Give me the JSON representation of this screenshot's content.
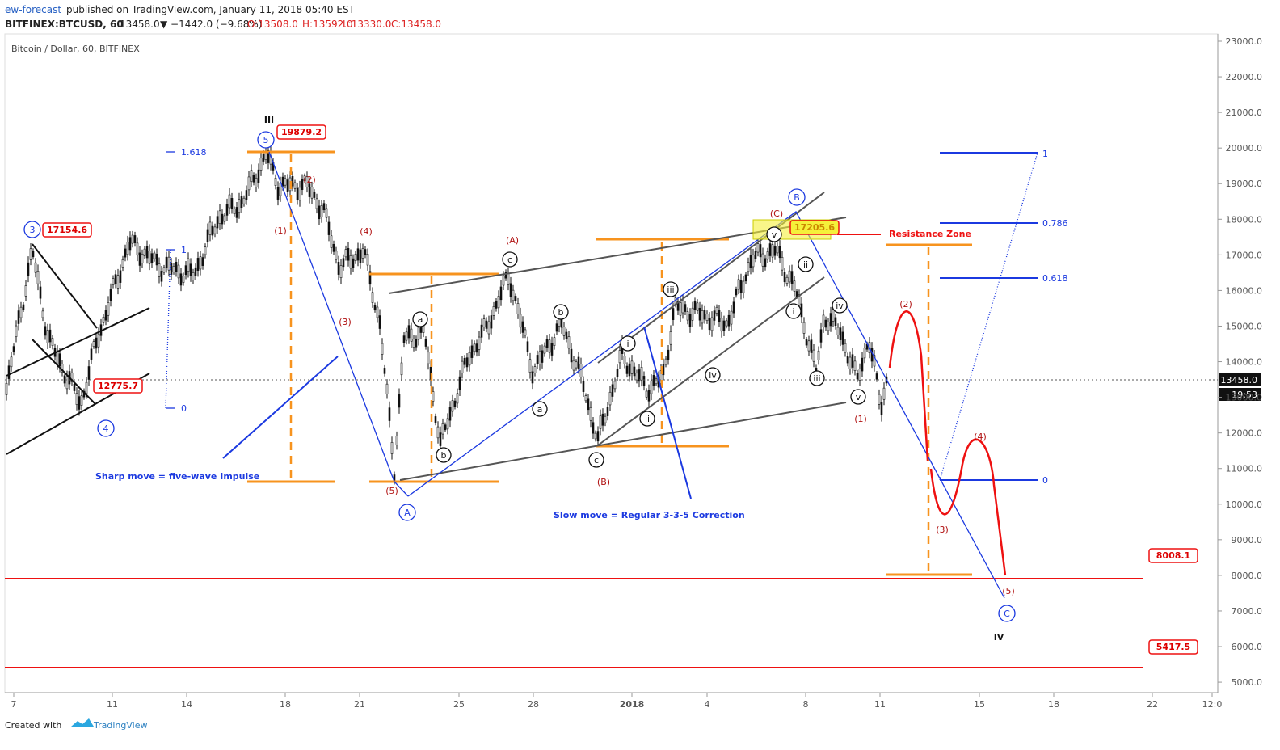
{
  "header": {
    "author": "ew-forecast",
    "published": "published on TradingView.com, January 11, 2018 05:40 EST",
    "symbol": "BITFINEX:BTCUSD, 60",
    "last": "13458.0",
    "change": "▼ −1442.0 (−9.68%)",
    "open": "O:13508.0",
    "high": "H:13592.0",
    "low": "L:13330.0",
    "close": "C:13458.0"
  },
  "chart": {
    "title": "Bitcoin / Dollar, 60, BITFINEX",
    "price_axis": [
      "23000.0",
      "22000.0",
      "21000.0",
      "20000.0",
      "19000.0",
      "18000.0",
      "17000.0",
      "16000.0",
      "15000.0",
      "14000.0",
      "13000.0",
      "12000.0",
      "11000.0",
      "10000.0",
      "9000.0",
      "8000.0",
      "7000.0",
      "6000.0",
      "5000.0"
    ],
    "time_axis": [
      "7",
      "11",
      "14",
      "18",
      "21",
      "25",
      "28",
      "2018",
      "4",
      "8",
      "11",
      "15",
      "18",
      "22",
      "12:0"
    ],
    "current_price": "13458.0",
    "countdown": "19:53",
    "degree_labels": [
      "III",
      "IV"
    ],
    "circled_waves": [
      "3",
      "5",
      "4",
      "A",
      "B",
      "C"
    ],
    "red_waves": [
      "(2)",
      "(1)",
      "(4)",
      "(3)",
      "(5)",
      "(A)",
      "(B)",
      "(C)",
      "(1)",
      "(2)",
      "(4)",
      "(3)",
      "(5)"
    ],
    "minor_waves": [
      "c",
      "a",
      "b",
      "a",
      "b",
      "c",
      "i",
      "ii",
      "iii",
      "iv",
      "v",
      "ii",
      "i",
      "iv",
      "iii",
      "v"
    ],
    "notes": [
      "Sharp move = five-wave Impulse",
      "Slow move = Regular 3-3-5 Correction",
      "Resistance Zone"
    ],
    "price_callouts": [
      "19879.2",
      "17154.6",
      "12775.7",
      "17205.6",
      "8008.1",
      "5417.5"
    ],
    "fib_left": [
      "1.618",
      "1",
      "0"
    ],
    "fib_right": [
      "1",
      "0.786",
      "0.618",
      "0"
    ]
  },
  "footer": {
    "created": "Created with",
    "brand": "TradingView"
  }
}
